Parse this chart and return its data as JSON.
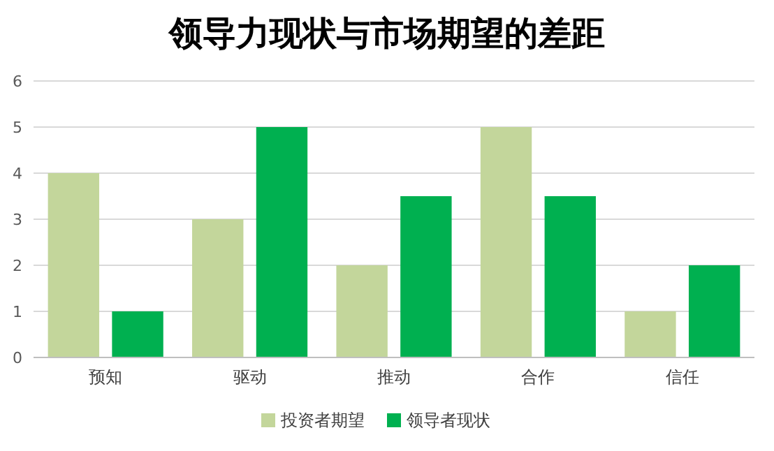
{
  "chart_data": {
    "type": "bar",
    "title": "领导力现状与市场期望的差距",
    "categories": [
      "预知",
      "驱动",
      "推动",
      "合作",
      "信任"
    ],
    "series": [
      {
        "name": "投资者期望",
        "color": "#c3d69b",
        "values": [
          4,
          3,
          2,
          5,
          1
        ]
      },
      {
        "name": "领导者现状",
        "color": "#00b050",
        "values": [
          1,
          5,
          3.5,
          3.5,
          2
        ]
      }
    ],
    "ylim": [
      0,
      6
    ],
    "yticks": [
      0,
      1,
      2,
      3,
      4,
      5,
      6
    ],
    "grid": "y",
    "legend": "bottom"
  }
}
